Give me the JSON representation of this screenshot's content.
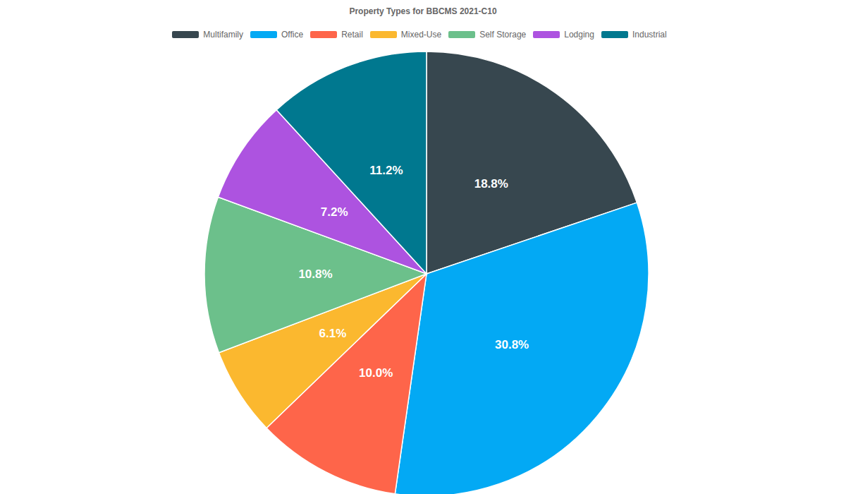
{
  "chart_data": {
    "type": "pie",
    "title": "Property Types for BBCMS 2021-C10",
    "categories": [
      "Multifamily",
      "Office",
      "Retail",
      "Mixed-Use",
      "Self Storage",
      "Lodging",
      "Industrial"
    ],
    "values": [
      18.8,
      30.8,
      10.0,
      6.1,
      10.8,
      7.2,
      11.2
    ],
    "value_labels": [
      "18.8%",
      "30.8%",
      "10.0%",
      "6.1%",
      "10.8%",
      "7.2%",
      "11.2%"
    ],
    "colors": [
      "#37474f",
      "#03a9f4",
      "#fe654a",
      "#fbb82f",
      "#6cc08b",
      "#ad53e0",
      "#00788f"
    ],
    "data_labels": true,
    "legend": "top"
  }
}
